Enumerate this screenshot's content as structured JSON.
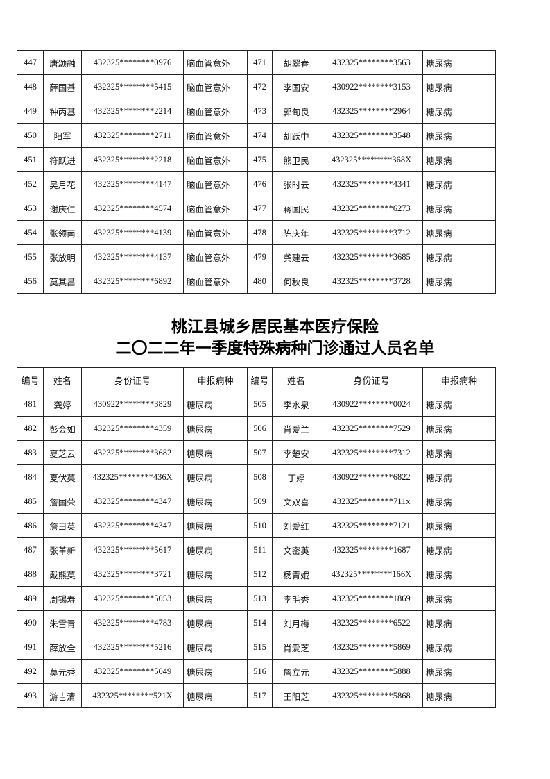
{
  "top_table": {
    "rows": [
      [
        "447",
        "唐颂融",
        "432325********0976",
        "脑血管意外",
        "471",
        "胡翠春",
        "432325********3563",
        "糖尿病"
      ],
      [
        "448",
        "薛国基",
        "432325********5415",
        "脑血管意外",
        "472",
        "李国安",
        "430922********3153",
        "糖尿病"
      ],
      [
        "449",
        "钟丙基",
        "432325********2214",
        "脑血管意外",
        "473",
        "郭旬良",
        "432325********2964",
        "糖尿病"
      ],
      [
        "450",
        "阳军",
        "432325********2711",
        "脑血管意外",
        "474",
        "胡跃中",
        "432325********3548",
        "糖尿病"
      ],
      [
        "451",
        "符跃进",
        "432325********2218",
        "脑血管意外",
        "475",
        "熊卫民",
        "432325********368X",
        "糖尿病"
      ],
      [
        "452",
        "吴月花",
        "432325********4147",
        "脑血管意外",
        "476",
        "张时云",
        "432325********4341",
        "糖尿病"
      ],
      [
        "453",
        "谢庆仁",
        "432325********4574",
        "脑血管意外",
        "477",
        "蒋国民",
        "432325********6273",
        "糖尿病"
      ],
      [
        "454",
        "张领南",
        "432325********4139",
        "脑血管意外",
        "478",
        "陈庆年",
        "432325********3712",
        "糖尿病"
      ],
      [
        "455",
        "张放明",
        "432325********4137",
        "脑血管意外",
        "479",
        "龚建云",
        "432325********3685",
        "糖尿病"
      ],
      [
        "456",
        "莫其昌",
        "432325********6892",
        "脑血管意外",
        "480",
        "何秋良",
        "432325********3728",
        "糖尿病"
      ]
    ]
  },
  "title": {
    "line1": "桃江县城乡居民基本医疗保险",
    "line2": "二〇二二年一季度特殊病种门诊通过人员名单"
  },
  "bottom_table": {
    "header": [
      "编号",
      "姓名",
      "身份证号",
      "申报病种",
      "编号",
      "姓名",
      "身份证号",
      "申报病种"
    ],
    "rows": [
      [
        "481",
        "龚婷",
        "430922********3829",
        "糖尿病",
        "505",
        "李水泉",
        "430922********0024",
        "糖尿病"
      ],
      [
        "482",
        "彭会如",
        "432325********4359",
        "糖尿病",
        "506",
        "肖爱兰",
        "432325********7529",
        "糖尿病"
      ],
      [
        "483",
        "夏芝云",
        "432325********3682",
        "糖尿病",
        "507",
        "李楚安",
        "432325********7312",
        "糖尿病"
      ],
      [
        "484",
        "夏伏英",
        "432325********436X",
        "糖尿病",
        "508",
        "丁婷",
        "430922********6822",
        "糖尿病"
      ],
      [
        "485",
        "詹国荣",
        "432325********4347",
        "糖尿病",
        "509",
        "文双喜",
        "432325********711x",
        "糖尿病"
      ],
      [
        "486",
        "詹彐英",
        "432325********4347",
        "糖尿病",
        "510",
        "刘爱红",
        "432325********7121",
        "糖尿病"
      ],
      [
        "487",
        "张革新",
        "432325********5617",
        "糖尿病",
        "511",
        "文密英",
        "432325********1687",
        "糖尿病"
      ],
      [
        "488",
        "戴熊英",
        "432325********3721",
        "糖尿病",
        "512",
        "杨青娥",
        "432325********166X",
        "糖尿病"
      ],
      [
        "489",
        "周锡寿",
        "432325********5053",
        "糖尿病",
        "513",
        "李毛秀",
        "432325********1869",
        "糖尿病"
      ],
      [
        "490",
        "朱雪青",
        "432325********4783",
        "糖尿病",
        "514",
        "刘月梅",
        "432325********6522",
        "糖尿病"
      ],
      [
        "491",
        "薛放全",
        "432325********5216",
        "糖尿病",
        "515",
        "肖爱芝",
        "432325********5869",
        "糖尿病"
      ],
      [
        "492",
        "莫元秀",
        "432325********5049",
        "糖尿病",
        "516",
        "詹立元",
        "432325********5888",
        "糖尿病"
      ],
      [
        "493",
        "游吉清",
        "432325********521X",
        "糖尿病",
        "517",
        "王阳芝",
        "432325********5868",
        "糖尿病"
      ]
    ]
  }
}
